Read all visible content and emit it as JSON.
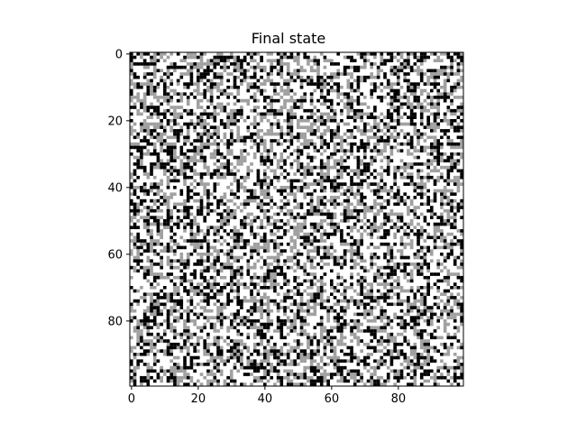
{
  "chart_data": {
    "type": "heatmap",
    "title": "Final state",
    "grid_size": [
      100,
      100
    ],
    "colormap": "gray",
    "state_colors": {
      "0": "#ffffff",
      "1": "#a0a0a0",
      "2": "#000000"
    },
    "xlim": [
      -0.5,
      99.5
    ],
    "ylim": [
      99.5,
      -0.5
    ],
    "x_ticks": [
      0,
      20,
      40,
      60,
      80
    ],
    "y_ticks": [
      0,
      20,
      40,
      60,
      80
    ],
    "grid": false,
    "legend": "none"
  }
}
